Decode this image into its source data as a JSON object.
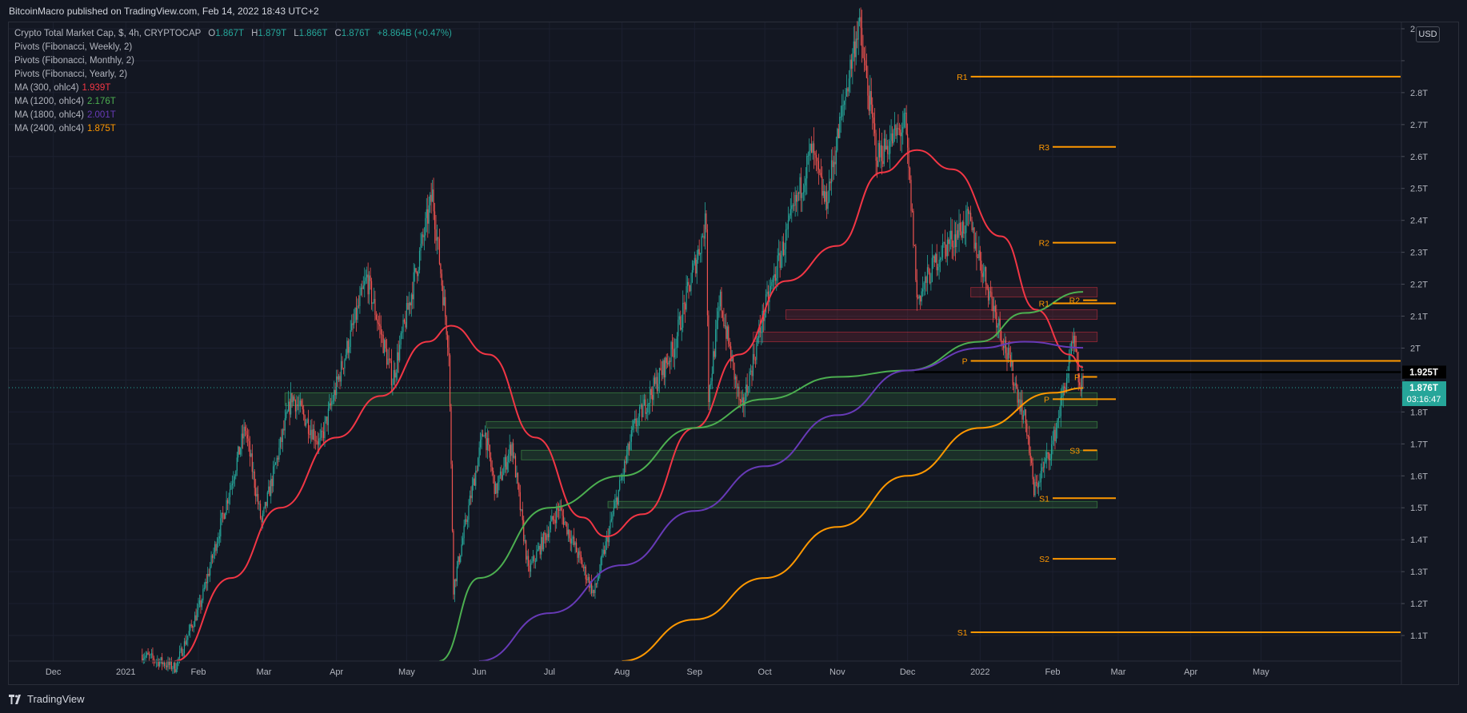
{
  "header": {
    "published": "BitcoinMacro published on TradingView.com, Feb 14, 2022 18:43 UTC+2"
  },
  "legend": {
    "symbol": "Crypto Total Market Cap, $, 4h, CRYPTOCAP",
    "open_label": "O",
    "open": "1.867T",
    "high_label": "H",
    "high": "1.879T",
    "low_label": "L",
    "low": "1.866T",
    "close_label": "C",
    "close": "1.876T",
    "change": "+8.864B (+0.47%)",
    "indicators": [
      {
        "name": "Pivots (Fibonacci, Weekly, 2)",
        "value": "",
        "color": "#b2b5be"
      },
      {
        "name": "Pivots (Fibonacci, Monthly, 2)",
        "value": "",
        "color": "#b2b5be"
      },
      {
        "name": "Pivots (Fibonacci, Yearly, 2)",
        "value": "",
        "color": "#b2b5be"
      },
      {
        "name": "MA (300, ohlc4)",
        "value": "1.939T",
        "color": "#f23645"
      },
      {
        "name": "MA (1200, ohlc4)",
        "value": "2.176T",
        "color": "#4caf50"
      },
      {
        "name": "MA (1800, ohlc4)",
        "value": "2.001T",
        "color": "#673ab7"
      },
      {
        "name": "MA (2400, ohlc4)",
        "value": "1.875T",
        "color": "#ff9800"
      }
    ]
  },
  "currency": "USD",
  "footer": {
    "brand": "TradingView"
  },
  "colors": {
    "background": "#131722",
    "up": "#26a69a",
    "down": "#ef5350",
    "ma300": "#f23645",
    "ma1200": "#4caf50",
    "ma1800": "#673ab7",
    "ma2400": "#ff9800",
    "pivot": "#ff9800",
    "price_badge": "#26a69a"
  },
  "chart_data": {
    "type": "line",
    "title": "Crypto Total Market Cap, $, 4h, CRYPTOCAP",
    "ylim": [
      1.02,
      3.02
    ],
    "y_ticks": [
      1.1,
      1.2,
      1.3,
      1.4,
      1.5,
      1.6,
      1.7,
      1.8,
      1.9,
      2.0,
      2.1,
      2.2,
      2.3,
      2.4,
      2.5,
      2.6,
      2.7,
      2.8,
      2.9,
      3.0
    ],
    "y_tick_labels": [
      "1.1T",
      "1.2T",
      "1.3T",
      "1.4T",
      "1.5T",
      "1.6T",
      "1.7T",
      "1.8T",
      "",
      "2T",
      "2.1T",
      "2.2T",
      "2.3T",
      "2.4T",
      "2.5T",
      "2.6T",
      "2.7T",
      "2.8T",
      "",
      "2."
    ],
    "x_ticks": [
      {
        "date": "2020-12-01",
        "label": "Dec"
      },
      {
        "date": "2021-01-01",
        "label": "2021"
      },
      {
        "date": "2021-02-01",
        "label": "Feb"
      },
      {
        "date": "2021-03-01",
        "label": "Mar"
      },
      {
        "date": "2021-04-01",
        "label": "Apr"
      },
      {
        "date": "2021-05-01",
        "label": "May"
      },
      {
        "date": "2021-06-01",
        "label": "Jun"
      },
      {
        "date": "2021-07-01",
        "label": "Jul"
      },
      {
        "date": "2021-08-01",
        "label": "Aug"
      },
      {
        "date": "2021-09-01",
        "label": "Sep"
      },
      {
        "date": "2021-10-01",
        "label": "Oct"
      },
      {
        "date": "2021-11-01",
        "label": "Nov"
      },
      {
        "date": "2021-12-01",
        "label": "Dec"
      },
      {
        "date": "2022-01-01",
        "label": "2022"
      },
      {
        "date": "2022-02-01",
        "label": "Feb"
      },
      {
        "date": "2022-03-01",
        "label": "Mar"
      },
      {
        "date": "2022-04-01",
        "label": "Apr"
      },
      {
        "date": "2022-05-01",
        "label": "May"
      }
    ],
    "price": {
      "x": [
        "2021-01-08",
        "2021-01-22",
        "2021-02-02",
        "2021-02-21",
        "2021-02-28",
        "2021-03-13",
        "2021-03-25",
        "2021-04-14",
        "2021-04-25",
        "2021-05-12",
        "2021-05-19",
        "2021-05-21",
        "2021-06-03",
        "2021-06-08",
        "2021-06-15",
        "2021-06-22",
        "2021-07-05",
        "2021-07-20",
        "2021-08-06",
        "2021-08-23",
        "2021-09-06",
        "2021-09-07",
        "2021-09-12",
        "2021-09-21",
        "2021-10-01",
        "2021-10-21",
        "2021-10-27",
        "2021-11-10",
        "2021-11-18",
        "2021-11-30",
        "2021-12-04",
        "2021-12-05",
        "2021-12-15",
        "2021-12-27",
        "2022-01-10",
        "2022-01-21",
        "2022-01-24",
        "2022-02-01",
        "2022-02-10",
        "2022-02-12",
        "2022-02-14"
      ],
      "y": [
        1.04,
        1.0,
        1.2,
        1.75,
        1.45,
        1.85,
        1.7,
        2.22,
        1.9,
        2.48,
        2.0,
        1.25,
        1.75,
        1.55,
        1.7,
        1.3,
        1.5,
        1.23,
        1.75,
        2.0,
        2.4,
        1.85,
        2.15,
        1.8,
        2.12,
        2.62,
        2.45,
        3.02,
        2.6,
        2.7,
        2.3,
        2.15,
        2.3,
        2.4,
        2.05,
        1.75,
        1.55,
        1.7,
        2.02,
        1.9,
        1.876
      ]
    },
    "series": [
      {
        "name": "MA (300, ohlc4)",
        "x": [
          "2021-01-22",
          "2021-02-15",
          "2021-03-08",
          "2021-04-01",
          "2021-04-20",
          "2021-05-10",
          "2021-05-20",
          "2021-06-05",
          "2021-06-25",
          "2021-07-15",
          "2021-07-25",
          "2021-08-10",
          "2021-09-01",
          "2021-09-20",
          "2021-10-10",
          "2021-11-01",
          "2021-11-20",
          "2021-12-05",
          "2021-12-20",
          "2022-01-10",
          "2022-01-25",
          "2022-02-08",
          "2022-02-14"
        ],
        "y": [
          1.02,
          1.28,
          1.5,
          1.72,
          1.85,
          2.02,
          2.07,
          1.98,
          1.72,
          1.47,
          1.41,
          1.48,
          1.75,
          1.98,
          2.21,
          2.32,
          2.55,
          2.62,
          2.56,
          2.35,
          2.12,
          1.98,
          1.94
        ]
      },
      {
        "name": "MA (1200, ohlc4)",
        "x": [
          "2021-05-15",
          "2021-06-01",
          "2021-07-01",
          "2021-08-01",
          "2021-09-01",
          "2021-10-01",
          "2021-11-01",
          "2021-12-01",
          "2022-01-01",
          "2022-01-20",
          "2022-02-14"
        ],
        "y": [
          1.02,
          1.28,
          1.5,
          1.6,
          1.75,
          1.84,
          1.91,
          1.93,
          2.02,
          2.11,
          2.176
        ]
      },
      {
        "name": "MA (1800, ohlc4)",
        "x": [
          "2021-06-01",
          "2021-07-01",
          "2021-08-01",
          "2021-09-01",
          "2021-10-01",
          "2021-11-01",
          "2021-12-01",
          "2022-01-01",
          "2022-01-20",
          "2022-02-14"
        ],
        "y": [
          1.02,
          1.17,
          1.32,
          1.49,
          1.63,
          1.79,
          1.93,
          2.0,
          2.02,
          2.001
        ]
      },
      {
        "name": "MA (2400, ohlc4)",
        "x": [
          "2021-08-01",
          "2021-09-01",
          "2021-10-01",
          "2021-11-01",
          "2021-12-01",
          "2022-01-01",
          "2022-02-01",
          "2022-02-14"
        ],
        "y": [
          1.02,
          1.15,
          1.28,
          1.44,
          1.6,
          1.75,
          1.86,
          1.875
        ]
      }
    ],
    "pivots": [
      {
        "label": "R1",
        "level": 2.85,
        "x_from": "2021-12-28",
        "x_to": "2022-06-30"
      },
      {
        "label": "S1",
        "level": 1.11,
        "x_from": "2021-12-28",
        "x_to": "2022-06-30"
      },
      {
        "label": "P",
        "level": 1.96,
        "x_from": "2021-12-28",
        "x_to": "2022-06-30"
      },
      {
        "label": "R3",
        "level": 2.63,
        "x_from": "2022-02-01",
        "x_to": "2022-02-28"
      },
      {
        "label": "R2",
        "level": 2.33,
        "x_from": "2022-02-01",
        "x_to": "2022-02-28"
      },
      {
        "label": "R1",
        "level": 2.14,
        "x_from": "2022-02-01",
        "x_to": "2022-02-28"
      },
      {
        "label": "P",
        "level": 1.84,
        "x_from": "2022-02-01",
        "x_to": "2022-02-28"
      },
      {
        "label": "S1",
        "level": 1.53,
        "x_from": "2022-02-01",
        "x_to": "2022-02-28"
      },
      {
        "label": "S2",
        "level": 1.34,
        "x_from": "2022-02-01",
        "x_to": "2022-02-28"
      },
      {
        "label": "R2",
        "level": 2.15,
        "x_from": "2022-02-14",
        "x_to": "2022-02-20"
      },
      {
        "label": "P",
        "level": 1.91,
        "x_from": "2022-02-14",
        "x_to": "2022-02-20"
      },
      {
        "label": "S3",
        "level": 1.68,
        "x_from": "2022-02-14",
        "x_to": "2022-02-20"
      }
    ],
    "zones": [
      {
        "kind": "resistance",
        "x_from": "2021-12-28",
        "x_to": "2022-02-20",
        "y_from": 2.16,
        "y_to": 2.19
      },
      {
        "kind": "resistance",
        "x_from": "2021-10-10",
        "x_to": "2022-02-20",
        "y_from": 2.09,
        "y_to": 2.12
      },
      {
        "kind": "resistance",
        "x_from": "2021-09-26",
        "x_to": "2022-02-20",
        "y_from": 2.02,
        "y_to": 2.05
      },
      {
        "kind": "support",
        "x_from": "2021-03-10",
        "x_to": "2022-02-20",
        "y_from": 1.82,
        "y_to": 1.86
      },
      {
        "kind": "support",
        "x_from": "2021-06-04",
        "x_to": "2022-02-20",
        "y_from": 1.75,
        "y_to": 1.77
      },
      {
        "kind": "support",
        "x_from": "2021-06-19",
        "x_to": "2022-02-20",
        "y_from": 1.65,
        "y_to": 1.68
      },
      {
        "kind": "support",
        "x_from": "2021-07-26",
        "x_to": "2022-02-20",
        "y_from": 1.5,
        "y_to": 1.52
      }
    ],
    "horizontal_line": {
      "level": 1.925,
      "x_from": "2021-12-04",
      "label": "1.925T"
    },
    "last_price": {
      "level": 1.876,
      "label": "1.876T",
      "countdown": "03:16:47"
    }
  }
}
